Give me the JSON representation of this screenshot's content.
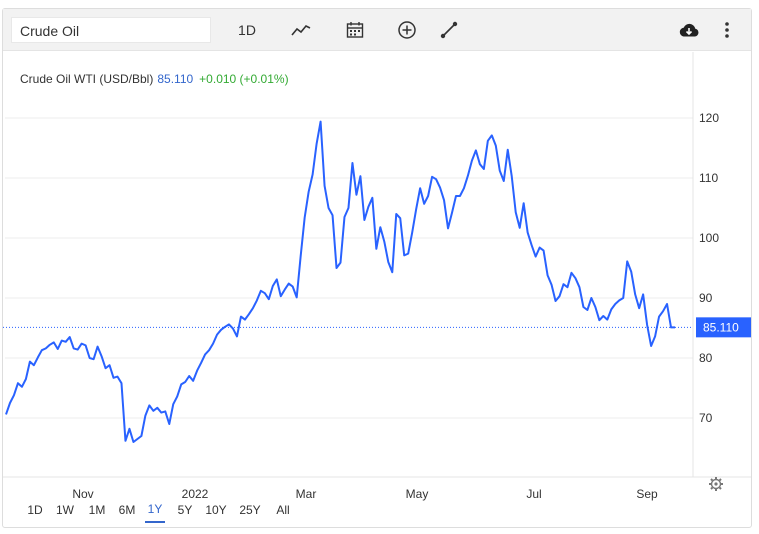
{
  "toolbar": {
    "search_value": "Crude Oil",
    "period_label": "1D",
    "icons": [
      "line-chart-icon",
      "calendar-icon",
      "add-compare-icon",
      "draw-line-icon",
      "download-cloud-icon",
      "more-vertical-icon"
    ]
  },
  "legend": {
    "name": "Crude Oil WTI (USD/Bbl)",
    "price": "85.110",
    "change": "+0.010 (+0.01%)"
  },
  "last_price_label": "85.110",
  "range_buttons": [
    {
      "label": "1D",
      "active": false
    },
    {
      "label": "1W",
      "active": false
    },
    {
      "label": "1M",
      "active": false
    },
    {
      "label": "6M",
      "active": false
    },
    {
      "label": "1Y",
      "active": true
    },
    {
      "label": "5Y",
      "active": false
    },
    {
      "label": "10Y",
      "active": false
    },
    {
      "label": "25Y",
      "active": false
    },
    {
      "label": "All",
      "active": false
    }
  ],
  "colors": {
    "line": "#2962ff",
    "price_text": "#3366cc",
    "change_text": "#33aa33",
    "last_price_bg": "#2962ff"
  },
  "chart_data": {
    "type": "line",
    "xlabel": "",
    "ylabel": "",
    "xticks": [
      "Nov",
      "2022",
      "Mar",
      "May",
      "Jul",
      "Sep"
    ],
    "yticks": [
      70,
      80,
      90,
      100,
      110,
      120
    ],
    "ylim": [
      60,
      130
    ],
    "grid": true,
    "series": [
      {
        "values": [
          70.6,
          72.5,
          73.8,
          75.8,
          75.2,
          76.5,
          79.4,
          78.8,
          80.1,
          81.3,
          81.6,
          82.2,
          82.6,
          81.5,
          82.9,
          82.7,
          83.5,
          81.6,
          81.4,
          82.4,
          82.1,
          80.0,
          79.8,
          81.9,
          80.3,
          78.3,
          78.8,
          76.7,
          76.9,
          75.8,
          66.2,
          68.2,
          66.0,
          66.5,
          67.0,
          70.4,
          72.1,
          71.2,
          71.7,
          70.9,
          71.1,
          69.0,
          72.3,
          73.6,
          75.6,
          76.0,
          77.0,
          76.2,
          77.9,
          79.2,
          80.6,
          81.3,
          82.4,
          83.9,
          84.7,
          85.2,
          85.6,
          84.9,
          83.6,
          86.9,
          86.4,
          87.3,
          88.3,
          89.6,
          91.2,
          90.8,
          89.8,
          92.0,
          93.1,
          90.3,
          91.4,
          92.4,
          91.9,
          90.1,
          97.0,
          103.4,
          107.7,
          110.6,
          115.7,
          119.4,
          108.7,
          105.0,
          103.8,
          95.0,
          95.9,
          103.5,
          105.0,
          112.5,
          107.2,
          110.3,
          103.0,
          105.2,
          106.7,
          98.2,
          101.8,
          99.4,
          96.0,
          94.3,
          104.0,
          103.3,
          97.1,
          97.4,
          100.9,
          104.8,
          108.3,
          105.7,
          107.0,
          110.2,
          109.8,
          108.4,
          106.3,
          101.6,
          104.2,
          107.0,
          107.0,
          108.3,
          110.4,
          112.9,
          114.6,
          112.3,
          111.5,
          116.2,
          117.1,
          115.4,
          111.2,
          109.5,
          114.7,
          110.3,
          104.3,
          101.7,
          105.8,
          100.9,
          98.8,
          96.9,
          98.4,
          97.9,
          93.8,
          92.2,
          89.5,
          90.3,
          92.3,
          91.8,
          94.2,
          93.3,
          91.8,
          88.5,
          88.0,
          90.0,
          88.5,
          86.3,
          87.0,
          86.4,
          88.1,
          89.0,
          89.6,
          90.0,
          96.1,
          94.4,
          90.6,
          88.3,
          90.6,
          85.5,
          82.0,
          83.6,
          86.9,
          87.8,
          89.0,
          85.1,
          85.11
        ]
      }
    ],
    "last_value": 85.11
  }
}
